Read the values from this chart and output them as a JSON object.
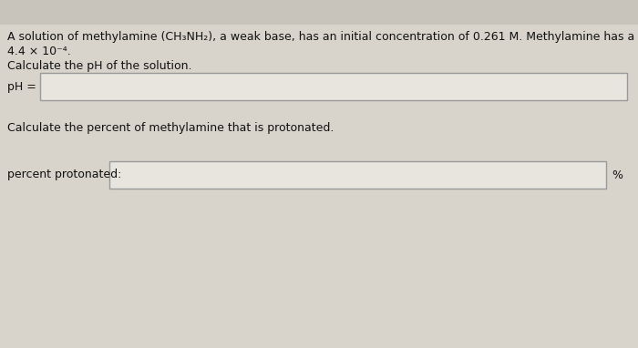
{
  "background_color": "#d8d4cc",
  "panel_color": "#eeebe5",
  "box_color": "#e8e5df",
  "box_edge_color": "#999999",
  "text_color": "#111111",
  "line1": "A solution of methylamine (CH₃NH₂), a weak base, has an initial concentration of 0.261 M. Methylamine has a Kₕ of",
  "line2": "4.4 × 10⁻⁴.",
  "line3": "Calculate the pH of the solution.",
  "label_pH": "pH =",
  "line4": "Calculate the percent of methylamine that is protonated.",
  "label_percent": "percent protonated:",
  "percent_suffix": "%",
  "font_size_body": 9.0,
  "top_margin_color": "#c8c4bc"
}
